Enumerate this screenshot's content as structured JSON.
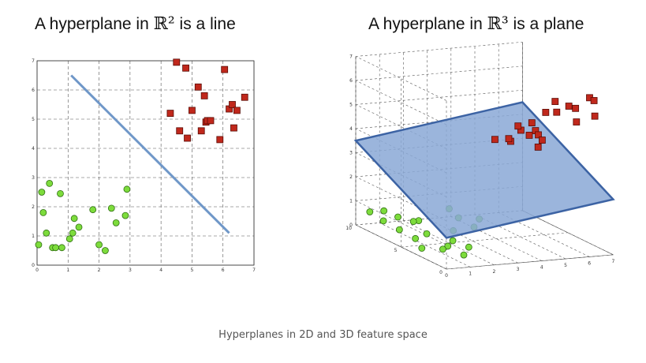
{
  "caption": "Hyperplanes in 2D and 3D feature space",
  "chart_data": [
    {
      "type": "scatter",
      "title_prefix": "A hyperplane in ",
      "title_symbol": "ℝ²",
      "title_suffix": " is a line",
      "xlim": [
        0,
        7
      ],
      "ylim": [
        0,
        7
      ],
      "xticks": [
        "0",
        "1",
        "2",
        "3",
        "4",
        "5",
        "6",
        "7"
      ],
      "yticks": [
        "0",
        "1",
        "2",
        "3",
        "4",
        "5",
        "6",
        "7"
      ],
      "grid": true,
      "colors": {
        "class_a": "#7ddc3c",
        "class_b": "#c0281c",
        "line": "#6f97c8"
      },
      "line": {
        "x": [
          1.1,
          6.2
        ],
        "y": [
          6.5,
          1.1
        ]
      },
      "series": [
        {
          "x": [
            0.05,
            0.15,
            0.2,
            0.3,
            0.4,
            0.5,
            0.6,
            0.75,
            0.8,
            1.05,
            1.15,
            1.2,
            1.35,
            1.8,
            2.0,
            2.2,
            2.4,
            2.55,
            2.85,
            2.9
          ],
          "y": [
            0.7,
            2.5,
            1.8,
            1.1,
            2.8,
            0.6,
            0.6,
            2.45,
            0.6,
            0.9,
            1.1,
            1.6,
            1.3,
            1.9,
            0.7,
            0.5,
            1.95,
            1.45,
            1.7,
            2.6
          ]
        },
        {
          "x": [
            4.3,
            4.5,
            4.6,
            4.8,
            4.85,
            5.0,
            5.2,
            5.3,
            5.4,
            5.45,
            5.5,
            5.6,
            5.9,
            6.05,
            6.2,
            6.3,
            6.35,
            6.45,
            6.7
          ],
          "y": [
            5.2,
            6.95,
            4.6,
            6.75,
            4.35,
            5.3,
            6.1,
            4.6,
            5.8,
            4.9,
            4.95,
            4.95,
            4.3,
            6.7,
            5.35,
            5.5,
            4.7,
            5.3,
            5.75
          ]
        }
      ]
    },
    {
      "type": "scatter",
      "title_prefix": "A hyperplane in ",
      "title_symbol": "ℝ³",
      "title_suffix": " is a plane",
      "xlim": [
        0,
        7
      ],
      "ylim": [
        0,
        10
      ],
      "zlim": [
        0,
        7
      ],
      "xticks": [
        "0",
        "1",
        "2",
        "3",
        "4",
        "5",
        "6",
        "7"
      ],
      "yticks": [
        "0",
        "5",
        "10"
      ],
      "zticks": [
        "0",
        "1",
        "2",
        "3",
        "4",
        "5",
        "6",
        "7"
      ],
      "grid": true,
      "colors": {
        "class_a": "#7ddc3c",
        "class_b": "#c0281c",
        "plane": "#8aa8d6",
        "plane_edge": "#3c63a4"
      },
      "plane": {
        "x": [
          0,
          7,
          7,
          0
        ],
        "y": [
          10,
          10,
          0,
          0
        ],
        "z": [
          3.5,
          4.5,
          2.3,
          1.3
        ]
      },
      "series": [
        {
          "x": [
            0.4,
            0.8,
            1.2,
            0.5,
            1.5,
            0.6,
            1.0,
            2.0,
            1.6,
            2.4,
            2.6,
            1.2,
            0.3,
            0.8,
            1.7,
            2.9,
            0.9,
            0.4,
            2.3,
            1.3
          ],
          "y": [
            9.5,
            9.0,
            8.5,
            6.5,
            7.0,
            5.0,
            4.8,
            4.5,
            3.5,
            6.0,
            5.5,
            3.0,
            3.5,
            2.5,
            2.0,
            4.0,
            6.0,
            8.0,
            3.0,
            1.5
          ],
          "z": [
            0.6,
            0.7,
            0.5,
            0.4,
            0.6,
            0.3,
            0.5,
            0.6,
            0.4,
            1.2,
            0.9,
            0.3,
            0.2,
            0.3,
            0.4,
            1.1,
            0.8,
            0.5,
            1.0,
            0.2
          ]
        },
        {
          "x": [
            4.5,
            4.8,
            5.0,
            5.2,
            5.4,
            5.5,
            5.0,
            4.6,
            5.8,
            6.2,
            5.3,
            4.9,
            6.5,
            6.8,
            6.6,
            5.6,
            4.7,
            5.9,
            5.1,
            4.4
          ],
          "y": [
            2.0,
            2.5,
            3.0,
            1.5,
            2.2,
            3.5,
            4.0,
            5.0,
            1.0,
            0.5,
            4.5,
            6.0,
            0.8,
            1.5,
            3.0,
            6.5,
            7.0,
            2.0,
            5.5,
            1.0
          ],
          "z": [
            5.0,
            4.2,
            4.6,
            5.8,
            6.1,
            5.4,
            4.4,
            4.0,
            6.0,
            6.5,
            4.8,
            3.9,
            6.3,
            5.5,
            5.0,
            4.1,
            3.7,
            5.9,
            4.5,
            4.8
          ]
        }
      ]
    }
  ]
}
